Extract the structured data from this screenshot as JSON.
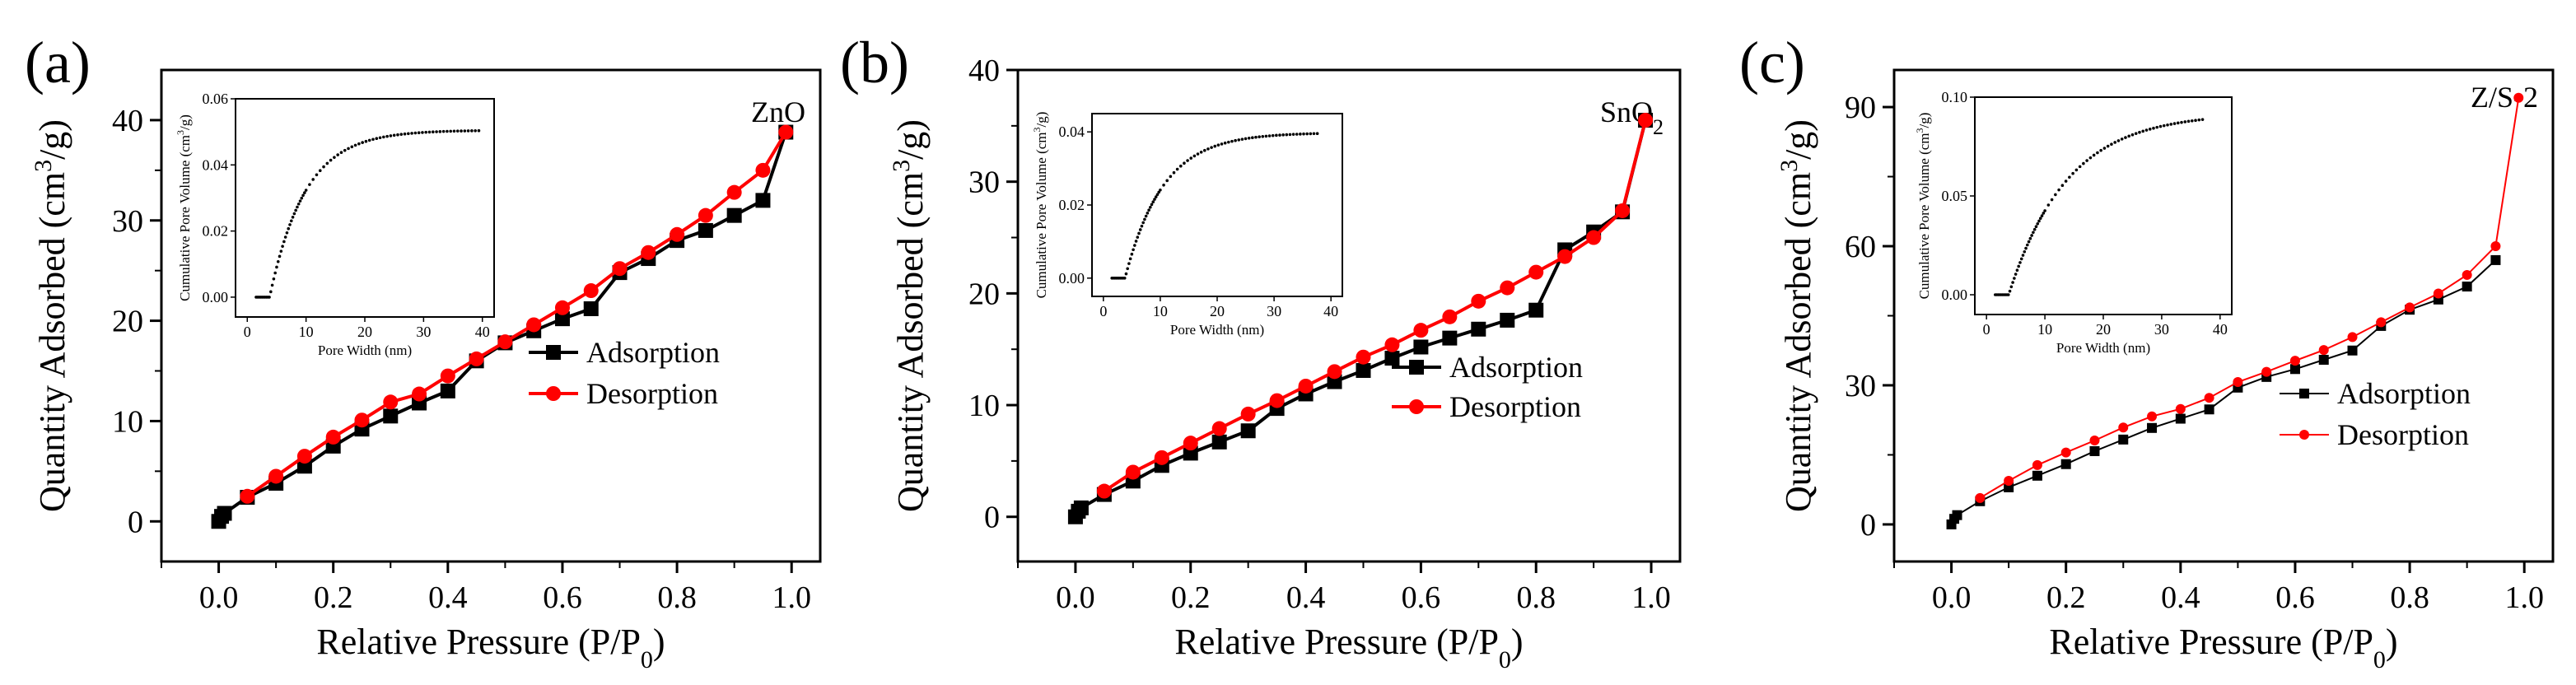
{
  "figure": {
    "panels": [
      {
        "letter": "(a)",
        "sample": "ZnO",
        "xlabel_main": "Relative Pressure (P/P",
        "xlabel_sub": "0",
        "xlabel_close": ")",
        "ylabel_main": "Quantity Adsorbed (cm",
        "ylabel_sup": "3",
        "ylabel_close": "/g)",
        "legend": [
          "Adsorption",
          "Desorption"
        ],
        "inset_xlabel": "Pore Width (nm)",
        "inset_ylabel_main": "Cumulative Pore Volume (cm",
        "inset_ylabel_sup": "3",
        "inset_ylabel_close": "/g)"
      },
      {
        "letter": "(b)",
        "sample_main": "SnO",
        "sample_sub": "2",
        "xlabel_main": "Relative Pressure (P/P",
        "xlabel_sub": "0",
        "xlabel_close": ")",
        "ylabel_main": "Quantity Adsorbed (cm",
        "ylabel_sup": "3",
        "ylabel_close": "/g)",
        "legend": [
          "Adsorption",
          "Desorption"
        ],
        "inset_xlabel": "Pore Width (nm)",
        "inset_ylabel_main": "Cumulative Pore Volume (cm",
        "inset_ylabel_sup": "3",
        "inset_ylabel_close": "/g)"
      },
      {
        "letter": "(c)",
        "sample": "Z/S-2",
        "xlabel_main": "Relative Pressure (P/P",
        "xlabel_sub": "0",
        "xlabel_close": ")",
        "ylabel_main": "Quantity Adsorbed (cm",
        "ylabel_sup": "3",
        "ylabel_close": "/g)",
        "legend": [
          "Adsorption",
          "Desorption"
        ],
        "inset_xlabel": "Pore Width (nm)",
        "inset_ylabel_main": "Cumulative Pore Volume (cm",
        "inset_ylabel_sup": "3",
        "inset_ylabel_close": "/g)"
      }
    ]
  },
  "colors": {
    "adsorption": "#000000",
    "desorption": "#ff0000",
    "axis": "#000000"
  },
  "chart_data": [
    {
      "type": "line",
      "panel": "(a)",
      "xlim": [
        -0.1,
        1.05
      ],
      "ylim": [
        -4,
        45
      ],
      "xticks": [
        0.0,
        0.2,
        0.4,
        0.6,
        0.8,
        1.0
      ],
      "xtick_labels": [
        "0.0",
        "0.2",
        "0.4",
        "0.6",
        "0.8",
        "1.0"
      ],
      "yticks": [
        0,
        10,
        20,
        30,
        40
      ],
      "ytick_labels": [
        "0",
        "10",
        "20",
        "30",
        "40"
      ],
      "legend_position": "center-right",
      "series": [
        {
          "name": "Adsorption",
          "x": [
            0.0,
            0.005,
            0.01,
            0.05,
            0.1,
            0.15,
            0.2,
            0.25,
            0.3,
            0.35,
            0.4,
            0.45,
            0.5,
            0.55,
            0.6,
            0.65,
            0.7,
            0.75,
            0.8,
            0.85,
            0.9,
            0.95,
            0.99
          ],
          "y": [
            0.0,
            0.5,
            0.8,
            2.4,
            3.8,
            5.5,
            7.5,
            9.2,
            10.5,
            11.8,
            13.0,
            16.0,
            17.8,
            19.0,
            20.2,
            21.2,
            24.8,
            26.2,
            28.0,
            29.0,
            30.5,
            32.0,
            38.8
          ]
        },
        {
          "name": "Desorption",
          "x": [
            0.99,
            0.95,
            0.9,
            0.85,
            0.8,
            0.75,
            0.7,
            0.65,
            0.6,
            0.55,
            0.5,
            0.45,
            0.4,
            0.35,
            0.3,
            0.25,
            0.2,
            0.15,
            0.1,
            0.05
          ],
          "y": [
            38.8,
            35.0,
            32.8,
            30.5,
            28.6,
            26.8,
            25.2,
            23.0,
            21.3,
            19.6,
            17.9,
            16.2,
            14.5,
            12.7,
            11.9,
            10.1,
            8.4,
            6.5,
            4.5,
            2.5
          ]
        }
      ],
      "inset": {
        "xlim": [
          -2,
          42
        ],
        "ylim": [
          -0.006,
          0.06
        ],
        "xticks": [
          0,
          10,
          20,
          30,
          40
        ],
        "xtick_labels": [
          "0",
          "10",
          "20",
          "30",
          "40"
        ],
        "yticks": [
          0.0,
          0.02,
          0.04,
          0.06
        ],
        "ytick_labels": [
          "0.00",
          "0.02",
          "0.04",
          "0.06"
        ],
        "curve": {
          "x_start": 1.5,
          "x_onset": 3.8,
          "x_end": 39.5,
          "v_max": 0.0505,
          "rate": 0.165
        }
      }
    },
    {
      "type": "line",
      "panel": "(b)",
      "xlim": [
        -0.1,
        1.05
      ],
      "ylim": [
        -4,
        40
      ],
      "xticks": [
        0.0,
        0.2,
        0.4,
        0.6,
        0.8,
        1.0
      ],
      "xtick_labels": [
        "0.0",
        "0.2",
        "0.4",
        "0.6",
        "0.8",
        "1.0"
      ],
      "yticks": [
        0,
        10,
        20,
        30,
        40
      ],
      "ytick_labels": [
        "0",
        "10",
        "20",
        "30",
        "40"
      ],
      "legend_position": "center-right",
      "series": [
        {
          "name": "Adsorption",
          "x": [
            0.0,
            0.005,
            0.01,
            0.05,
            0.1,
            0.15,
            0.2,
            0.25,
            0.3,
            0.35,
            0.4,
            0.45,
            0.5,
            0.55,
            0.6,
            0.65,
            0.7,
            0.75,
            0.8,
            0.85,
            0.9,
            0.95,
            0.99
          ],
          "y": [
            0.0,
            0.5,
            0.8,
            2.0,
            3.2,
            4.6,
            5.7,
            6.7,
            7.7,
            9.7,
            11.0,
            12.1,
            13.1,
            14.2,
            15.2,
            16.0,
            16.8,
            17.6,
            18.5,
            23.9,
            25.5,
            27.3,
            35.5
          ]
        },
        {
          "name": "Desorption",
          "x": [
            0.99,
            0.95,
            0.9,
            0.85,
            0.8,
            0.75,
            0.7,
            0.65,
            0.6,
            0.55,
            0.5,
            0.45,
            0.4,
            0.35,
            0.3,
            0.25,
            0.2,
            0.15,
            0.1,
            0.05
          ],
          "y": [
            35.5,
            27.4,
            25.0,
            23.3,
            21.9,
            20.5,
            19.3,
            17.9,
            16.7,
            15.4,
            14.3,
            13.0,
            11.7,
            10.4,
            9.2,
            7.9,
            6.6,
            5.3,
            4.0,
            2.3
          ]
        }
      ],
      "inset": {
        "xlim": [
          -2,
          42
        ],
        "ylim": [
          -0.005,
          0.045
        ],
        "xticks": [
          0,
          10,
          20,
          30,
          40
        ],
        "xtick_labels": [
          "0",
          "10",
          "20",
          "30",
          "40"
        ],
        "yticks": [
          0.0,
          0.02,
          0.04
        ],
        "ytick_labels": [
          "0.00",
          "0.02",
          "0.04"
        ],
        "curve": {
          "x_start": 1.5,
          "x_onset": 3.8,
          "x_end": 38.0,
          "v_max": 0.0398,
          "rate": 0.15
        }
      }
    },
    {
      "type": "line",
      "panel": "(c)",
      "xlim": [
        -0.1,
        1.05
      ],
      "ylim": [
        -8,
        98
      ],
      "xticks": [
        0.0,
        0.2,
        0.4,
        0.6,
        0.8,
        1.0
      ],
      "xtick_labels": [
        "0.0",
        "0.2",
        "0.4",
        "0.6",
        "0.8",
        "1.0"
      ],
      "yticks": [
        0,
        30,
        60,
        90
      ],
      "ytick_labels": [
        "0",
        "30",
        "60",
        "90"
      ],
      "legend_position": "center-right",
      "series": [
        {
          "name": "Adsorption",
          "x": [
            0.0,
            0.005,
            0.01,
            0.05,
            0.1,
            0.15,
            0.2,
            0.25,
            0.3,
            0.35,
            0.4,
            0.45,
            0.5,
            0.55,
            0.6,
            0.65,
            0.7,
            0.75,
            0.8,
            0.85,
            0.9,
            0.95
          ],
          "y": [
            0.0,
            1.2,
            2.0,
            5.0,
            8.0,
            10.5,
            13.0,
            15.8,
            18.3,
            20.8,
            22.8,
            24.8,
            29.5,
            31.8,
            33.5,
            35.5,
            37.5,
            42.8,
            46.3,
            48.5,
            51.3,
            57.0
          ]
        },
        {
          "name": "Desorption",
          "x": [
            0.99,
            0.95,
            0.9,
            0.85,
            0.8,
            0.75,
            0.7,
            0.65,
            0.6,
            0.55,
            0.5,
            0.45,
            0.4,
            0.35,
            0.3,
            0.25,
            0.2,
            0.15,
            0.1,
            0.05
          ],
          "y": [
            92.0,
            60.0,
            53.8,
            49.8,
            46.8,
            43.6,
            40.4,
            37.6,
            35.3,
            32.9,
            30.7,
            27.3,
            24.9,
            23.3,
            20.9,
            18.1,
            15.5,
            12.8,
            9.4,
            5.7
          ]
        }
      ],
      "inset": {
        "xlim": [
          -2,
          42
        ],
        "ylim": [
          -0.01,
          0.1
        ],
        "xticks": [
          0,
          10,
          20,
          30,
          40
        ],
        "xtick_labels": [
          "0",
          "10",
          "20",
          "30",
          "40"
        ],
        "yticks": [
          0.0,
          0.05,
          0.1
        ],
        "ytick_labels": [
          "0.00",
          "0.05",
          "0.10"
        ],
        "curve": {
          "x_start": 1.5,
          "x_onset": 3.8,
          "x_end": 37.5,
          "v_max": 0.092,
          "rate": 0.1
        }
      }
    }
  ]
}
